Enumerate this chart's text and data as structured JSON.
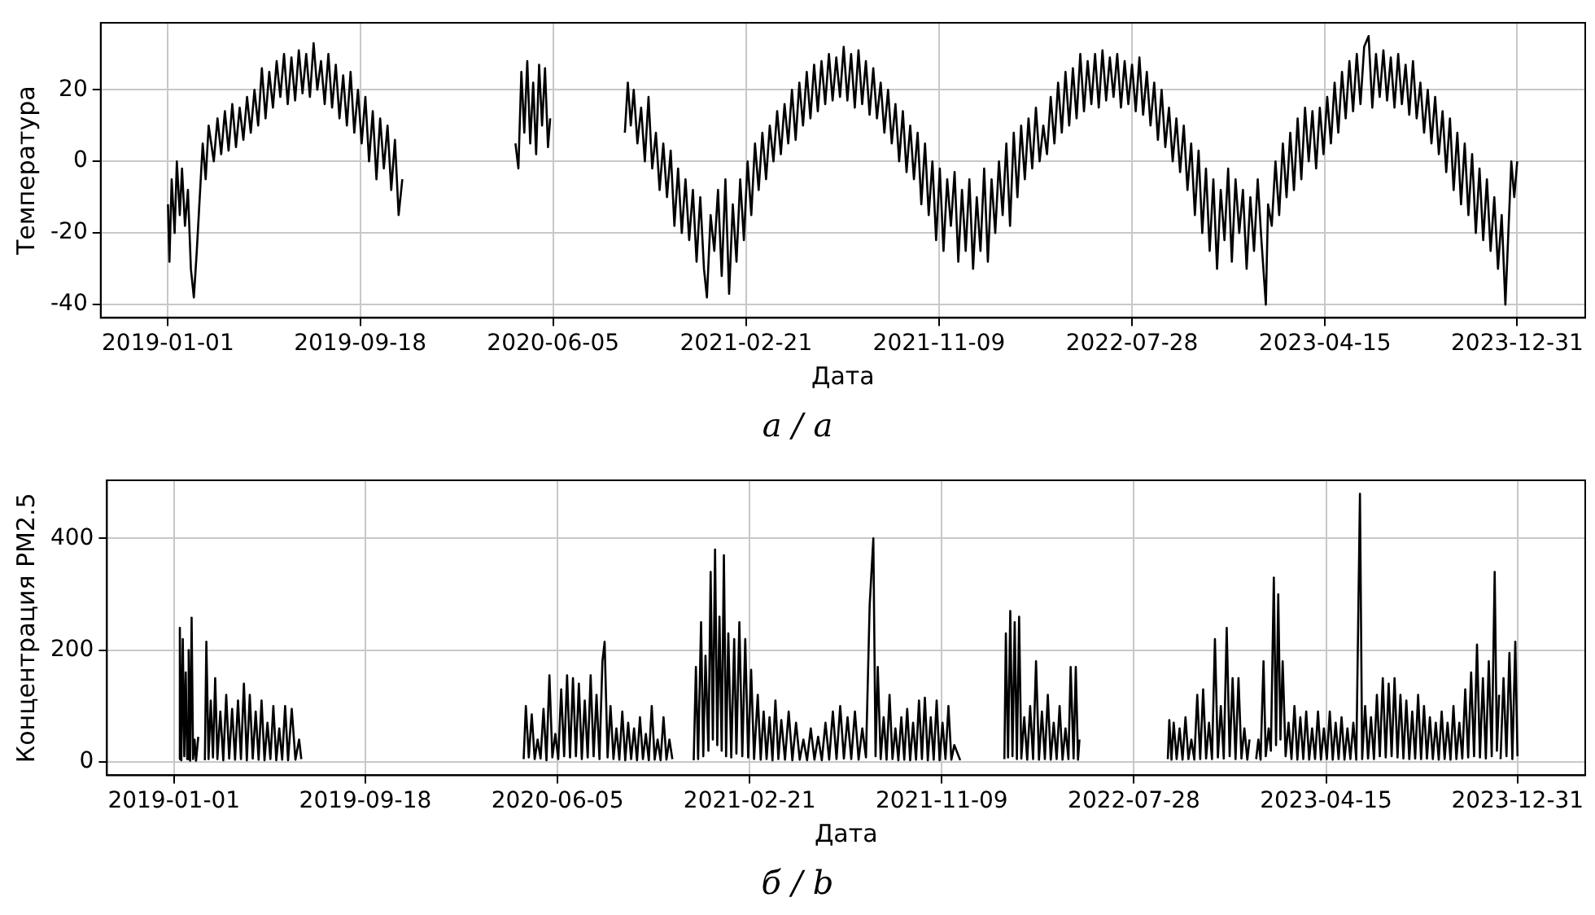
{
  "chart_data": [
    {
      "type": "line",
      "xlabel": "Дата",
      "ylabel": "Температура",
      "annotations": [
        "а / a"
      ],
      "xlim": [
        "2018-10-02",
        "2024-04-01"
      ],
      "xticks": [
        "2019-01-01",
        "2019-09-18",
        "2020-06-05",
        "2021-02-21",
        "2021-11-09",
        "2022-07-28",
        "2023-04-15",
        "2023-12-31"
      ],
      "ylim": [
        -43.7,
        38.7
      ],
      "yticks": [
        -40,
        -20,
        0,
        20
      ],
      "grid": true,
      "x": [
        "2019-01-01",
        "2019-01-03",
        "2019-01-06",
        "2019-01-10",
        "2019-01-13",
        "2019-01-17",
        "2019-01-20",
        "2019-01-24",
        "2019-01-28",
        "2019-02-01",
        "2019-02-05",
        "2019-02-09",
        "2019-02-13",
        "2019-02-17",
        "2019-02-21",
        "2019-02-25",
        "2019-03-04",
        "2019-03-09",
        "2019-03-14",
        "2019-03-19",
        "2019-03-24",
        "2019-03-29",
        "2019-04-03",
        "2019-04-08",
        "2019-04-13",
        "2019-04-18",
        "2019-04-23",
        "2019-04-28",
        "2019-05-03",
        "2019-05-08",
        "2019-05-13",
        "2019-05-18",
        "2019-05-23",
        "2019-05-28",
        "2019-06-02",
        "2019-06-07",
        "2019-06-12",
        "2019-06-17",
        "2019-06-22",
        "2019-06-27",
        "2019-07-02",
        "2019-07-07",
        "2019-07-12",
        "2019-07-17",
        "2019-07-22",
        "2019-07-27",
        "2019-08-01",
        "2019-08-06",
        "2019-08-11",
        "2019-08-16",
        "2019-08-21",
        "2019-08-26",
        "2019-08-31",
        "2019-09-05",
        "2019-09-10",
        "2019-09-15",
        "2019-09-20",
        "2019-09-25",
        "2019-09-30",
        "2019-10-05",
        "2019-10-10",
        "2019-10-15",
        "2019-10-20",
        "2019-10-25",
        "2019-10-30",
        "2019-11-04",
        "2019-11-09",
        "2019-11-14",
        "2020-01-15",
        "2020-04-15",
        "2020-04-19",
        "2020-04-23",
        "2020-04-27",
        "2020-05-01",
        "2020-05-05",
        "2020-05-09",
        "2020-05-13",
        "2020-05-17",
        "2020-05-21",
        "2020-05-25",
        "2020-05-29",
        "2020-06-01",
        "2020-07-20",
        "2020-09-10",
        "2020-09-14",
        "2020-09-18",
        "2020-09-22",
        "2020-09-27",
        "2020-10-02",
        "2020-10-07",
        "2020-10-12",
        "2020-10-17",
        "2020-10-22",
        "2020-10-27",
        "2020-11-01",
        "2020-11-06",
        "2020-11-11",
        "2020-11-16",
        "2020-11-21",
        "2020-11-26",
        "2020-12-01",
        "2020-12-06",
        "2020-12-11",
        "2020-12-16",
        "2020-12-21",
        "2020-12-26",
        "2020-12-30",
        "2021-01-04",
        "2021-01-09",
        "2021-01-14",
        "2021-01-19",
        "2021-01-24",
        "2021-01-29",
        "2021-02-03",
        "2021-02-08",
        "2021-02-13",
        "2021-02-18",
        "2021-02-23",
        "2021-02-28",
        "2021-03-05",
        "2021-03-10",
        "2021-03-15",
        "2021-03-20",
        "2021-03-25",
        "2021-03-30",
        "2021-04-04",
        "2021-04-09",
        "2021-04-14",
        "2021-04-19",
        "2021-04-24",
        "2021-04-29",
        "2021-05-04",
        "2021-05-09",
        "2021-05-14",
        "2021-05-19",
        "2021-05-24",
        "2021-05-29",
        "2021-06-03",
        "2021-06-08",
        "2021-06-13",
        "2021-06-18",
        "2021-06-23",
        "2021-06-28",
        "2021-07-03",
        "2021-07-08",
        "2021-07-13",
        "2021-07-18",
        "2021-07-23",
        "2021-07-28",
        "2021-08-02",
        "2021-08-07",
        "2021-08-12",
        "2021-08-17",
        "2021-08-22",
        "2021-08-27",
        "2021-09-01",
        "2021-09-06",
        "2021-09-11",
        "2021-09-16",
        "2021-09-21",
        "2021-09-26",
        "2021-10-01",
        "2021-10-06",
        "2021-10-11",
        "2021-10-16",
        "2021-10-21",
        "2021-10-26",
        "2021-10-31",
        "2021-11-05",
        "2021-11-10",
        "2021-11-15",
        "2021-11-20",
        "2021-11-25",
        "2021-11-30",
        "2021-12-05",
        "2021-12-10",
        "2021-12-15",
        "2021-12-20",
        "2021-12-25",
        "2021-12-30",
        "2022-01-04",
        "2022-01-09",
        "2022-01-14",
        "2022-01-19",
        "2022-01-24",
        "2022-01-29",
        "2022-02-03",
        "2022-02-08",
        "2022-02-13",
        "2022-02-18",
        "2022-02-23",
        "2022-02-28",
        "2022-03-05",
        "2022-03-10",
        "2022-03-15",
        "2022-03-20",
        "2022-03-25",
        "2022-03-30",
        "2022-04-04",
        "2022-04-09",
        "2022-04-14",
        "2022-04-19",
        "2022-04-24",
        "2022-04-29",
        "2022-05-04",
        "2022-05-09",
        "2022-05-14",
        "2022-05-19",
        "2022-05-24",
        "2022-05-29",
        "2022-06-03",
        "2022-06-08",
        "2022-06-13",
        "2022-06-18",
        "2022-06-23",
        "2022-06-28",
        "2022-07-03",
        "2022-07-08",
        "2022-07-13",
        "2022-07-18",
        "2022-07-23",
        "2022-07-28",
        "2022-08-02",
        "2022-08-07",
        "2022-08-12",
        "2022-08-17",
        "2022-08-22",
        "2022-08-27",
        "2022-09-01",
        "2022-09-06",
        "2022-09-11",
        "2022-09-16",
        "2022-09-21",
        "2022-09-26",
        "2022-10-01",
        "2022-10-06",
        "2022-10-11",
        "2022-10-16",
        "2022-10-21",
        "2022-10-26",
        "2022-10-31",
        "2022-11-05",
        "2022-11-10",
        "2022-11-15",
        "2022-11-20",
        "2022-11-25",
        "2022-11-30",
        "2022-12-05",
        "2022-12-10",
        "2022-12-15",
        "2022-12-20",
        "2022-12-25",
        "2022-12-30",
        "2023-01-04",
        "2023-01-09",
        "2023-01-14",
        "2023-01-19",
        "2023-01-25",
        "2023-01-28",
        "2023-02-02",
        "2023-02-07",
        "2023-02-12",
        "2023-02-17",
        "2023-02-22",
        "2023-02-27",
        "2023-03-04",
        "2023-03-09",
        "2023-03-14",
        "2023-03-19",
        "2023-03-24",
        "2023-03-29",
        "2023-04-03",
        "2023-04-08",
        "2023-04-13",
        "2023-04-18",
        "2023-04-23",
        "2023-04-28",
        "2023-05-03",
        "2023-05-08",
        "2023-05-13",
        "2023-05-18",
        "2023-05-23",
        "2023-05-28",
        "2023-06-02",
        "2023-06-07",
        "2023-06-13",
        "2023-06-18",
        "2023-06-23",
        "2023-06-28",
        "2023-07-03",
        "2023-07-08",
        "2023-07-13",
        "2023-07-18",
        "2023-07-23",
        "2023-07-28",
        "2023-08-02",
        "2023-08-07",
        "2023-08-12",
        "2023-08-17",
        "2023-08-22",
        "2023-08-27",
        "2023-09-01",
        "2023-09-06",
        "2023-09-11",
        "2023-09-16",
        "2023-09-21",
        "2023-09-26",
        "2023-10-01",
        "2023-10-06",
        "2023-10-11",
        "2023-10-16",
        "2023-10-21",
        "2023-10-26",
        "2023-10-31",
        "2023-11-05",
        "2023-11-10",
        "2023-11-15",
        "2023-11-20",
        "2023-11-25",
        "2023-11-30",
        "2023-12-05",
        "2023-12-10",
        "2023-12-15",
        "2023-12-19",
        "2023-12-23",
        "2023-12-27",
        "2023-12-31"
      ],
      "series": [
        {
          "color": "#000000",
          "values": [
            -12,
            -28,
            -5,
            -20,
            0,
            -15,
            -2,
            -18,
            -8,
            -30,
            -38,
            -25,
            -10,
            5,
            -5,
            10,
            0,
            12,
            2,
            14,
            3,
            16,
            4,
            15,
            6,
            18,
            8,
            20,
            10,
            26,
            12,
            25,
            15,
            28,
            18,
            30,
            16,
            29,
            17,
            31,
            19,
            30,
            18,
            33,
            20,
            28,
            16,
            30,
            15,
            27,
            12,
            24,
            10,
            25,
            8,
            20,
            5,
            18,
            0,
            14,
            -5,
            12,
            -2,
            10,
            -8,
            6,
            -15,
            -5,
            null,
            5,
            -2,
            25,
            8,
            28,
            5,
            22,
            2,
            27,
            10,
            26,
            4,
            12,
            null,
            8,
            22,
            10,
            20,
            5,
            15,
            0,
            18,
            -2,
            8,
            -8,
            5,
            -10,
            3,
            -18,
            -2,
            -20,
            -5,
            -22,
            -8,
            -28,
            -10,
            -30,
            -38,
            -15,
            -25,
            -8,
            -32,
            -5,
            -37,
            -12,
            -28,
            -5,
            -22,
            0,
            -15,
            5,
            -8,
            8,
            -5,
            10,
            0,
            14,
            2,
            16,
            5,
            20,
            6,
            22,
            10,
            25,
            12,
            27,
            14,
            28,
            16,
            30,
            17,
            29,
            18,
            32,
            17,
            30,
            15,
            31,
            16,
            28,
            13,
            26,
            12,
            22,
            8,
            20,
            5,
            16,
            0,
            14,
            -3,
            10,
            -5,
            8,
            -12,
            5,
            -15,
            0,
            -22,
            -2,
            -25,
            -5,
            -18,
            -3,
            -28,
            -8,
            -25,
            -5,
            -30,
            -10,
            -25,
            -2,
            -28,
            -5,
            -20,
            0,
            -15,
            5,
            -18,
            8,
            -10,
            10,
            -5,
            12,
            -2,
            15,
            0,
            10,
            2,
            18,
            5,
            22,
            8,
            25,
            10,
            26,
            12,
            30,
            14,
            28,
            16,
            30,
            15,
            31,
            17,
            29,
            18,
            30,
            15,
            28,
            16,
            27,
            14,
            29,
            13,
            25,
            10,
            22,
            6,
            20,
            4,
            15,
            0,
            12,
            -3,
            10,
            -8,
            5,
            -15,
            3,
            -20,
            -2,
            -25,
            -5,
            -30,
            -8,
            -22,
            -2,
            -28,
            -5,
            -20,
            -8,
            -30,
            -10,
            -25,
            -5,
            -22,
            -40,
            -12,
            -18,
            0,
            -15,
            5,
            -10,
            8,
            -8,
            12,
            -5,
            15,
            0,
            14,
            -2,
            15,
            2,
            18,
            5,
            22,
            8,
            25,
            12,
            28,
            14,
            30,
            16,
            32,
            35,
            15,
            30,
            18,
            31,
            17,
            29,
            15,
            30,
            16,
            27,
            13,
            28,
            12,
            22,
            8,
            20,
            5,
            18,
            2,
            14,
            -3,
            12,
            -8,
            8,
            -12,
            5,
            -15,
            2,
            -20,
            -2,
            -22,
            -5,
            -25,
            -10,
            -30,
            -15,
            -40,
            -20,
            0,
            -10,
            0
          ]
        }
      ]
    },
    {
      "type": "line",
      "xlabel": "Дата",
      "ylabel": "Концентрация PM2.5",
      "annotations": [
        "б / b"
      ],
      "xlim": [
        "2018-10-02",
        "2024-04-01"
      ],
      "xticks": [
        "2019-01-01",
        "2019-09-18",
        "2020-06-05",
        "2021-02-21",
        "2021-11-09",
        "2022-07-28",
        "2023-04-15",
        "2023-12-31"
      ],
      "ylim": [
        -24,
        504
      ],
      "yticks": [
        0,
        200,
        400
      ],
      "grid": true,
      "x": [
        "2019-01-08",
        "2019-01-09",
        "2019-01-11",
        "2019-01-13",
        "2019-01-15",
        "2019-01-17",
        "2019-01-19",
        "2019-01-21",
        "2019-01-23",
        "2019-01-25",
        "2019-01-27",
        "2019-01-29",
        "2019-01-31",
        "2019-02-03",
        "2019-02-08",
        "2019-02-12",
        "2019-02-14",
        "2019-02-17",
        "2019-02-20",
        "2019-02-23",
        "2019-02-26",
        "2019-03-01",
        "2019-03-05",
        "2019-03-09",
        "2019-03-13",
        "2019-03-17",
        "2019-03-21",
        "2019-03-25",
        "2019-03-29",
        "2019-04-02",
        "2019-04-06",
        "2019-04-10",
        "2019-04-14",
        "2019-04-18",
        "2019-04-22",
        "2019-04-26",
        "2019-04-30",
        "2019-05-04",
        "2019-05-08",
        "2019-05-12",
        "2019-05-16",
        "2019-05-20",
        "2019-05-24",
        "2019-05-28",
        "2019-06-01",
        "2019-06-05",
        "2019-06-10",
        "2019-06-15",
        "2019-06-20",
        "2019-06-23",
        "2019-12-01",
        "2020-04-20",
        "2020-04-23",
        "2020-04-27",
        "2020-05-01",
        "2020-05-05",
        "2020-05-09",
        "2020-05-13",
        "2020-05-17",
        "2020-05-21",
        "2020-05-25",
        "2020-05-29",
        "2020-06-02",
        "2020-06-06",
        "2020-06-10",
        "2020-06-14",
        "2020-06-18",
        "2020-06-22",
        "2020-06-26",
        "2020-06-30",
        "2020-07-04",
        "2020-07-08",
        "2020-07-12",
        "2020-07-16",
        "2020-07-20",
        "2020-07-24",
        "2020-07-28",
        "2020-08-01",
        "2020-08-05",
        "2020-08-08",
        "2020-08-12",
        "2020-08-16",
        "2020-08-20",
        "2020-08-24",
        "2020-08-28",
        "2020-09-01",
        "2020-09-05",
        "2020-09-09",
        "2020-09-13",
        "2020-09-17",
        "2020-09-21",
        "2020-09-25",
        "2020-09-29",
        "2020-10-03",
        "2020-10-07",
        "2020-10-11",
        "2020-10-15",
        "2020-10-19",
        "2020-10-23",
        "2020-10-27",
        "2020-10-31",
        "2020-11-04",
        "2020-11-08",
        "2020-11-22",
        "2020-12-07",
        "2020-12-10",
        "2020-12-13",
        "2020-12-17",
        "2020-12-20",
        "2020-12-23",
        "2020-12-27",
        "2020-12-30",
        "2021-01-02",
        "2021-01-05",
        "2021-01-08",
        "2021-01-11",
        "2021-01-14",
        "2021-01-17",
        "2021-01-20",
        "2021-01-23",
        "2021-01-27",
        "2021-01-31",
        "2021-02-03",
        "2021-02-07",
        "2021-02-11",
        "2021-02-15",
        "2021-02-19",
        "2021-02-23",
        "2021-02-27",
        "2021-03-04",
        "2021-03-08",
        "2021-03-12",
        "2021-03-16",
        "2021-03-20",
        "2021-03-24",
        "2021-03-28",
        "2021-04-01",
        "2021-04-05",
        "2021-04-10",
        "2021-04-15",
        "2021-04-20",
        "2021-04-25",
        "2021-04-30",
        "2021-05-05",
        "2021-05-10",
        "2021-05-15",
        "2021-05-20",
        "2021-05-25",
        "2021-05-30",
        "2021-06-04",
        "2021-06-09",
        "2021-06-14",
        "2021-06-19",
        "2021-06-24",
        "2021-06-29",
        "2021-07-04",
        "2021-07-09",
        "2021-07-14",
        "2021-07-19",
        "2021-07-24",
        "2021-07-29",
        "2021-08-03",
        "2021-08-08",
        "2021-08-11",
        "2021-08-14",
        "2021-08-18",
        "2021-08-22",
        "2021-08-26",
        "2021-08-30",
        "2021-09-03",
        "2021-09-07",
        "2021-09-11",
        "2021-09-15",
        "2021-09-19",
        "2021-09-23",
        "2021-09-27",
        "2021-10-01",
        "2021-10-05",
        "2021-10-09",
        "2021-10-13",
        "2021-10-17",
        "2021-10-21",
        "2021-10-25",
        "2021-10-29",
        "2021-11-02",
        "2021-11-06",
        "2021-11-10",
        "2021-11-14",
        "2021-11-18",
        "2021-11-22",
        "2021-11-26",
        "2021-12-04",
        "2022-01-05",
        "2022-02-02",
        "2022-02-04",
        "2022-02-07",
        "2022-02-10",
        "2022-02-13",
        "2022-02-16",
        "2022-02-19",
        "2022-02-22",
        "2022-02-25",
        "2022-03-01",
        "2022-03-05",
        "2022-03-09",
        "2022-03-13",
        "2022-03-17",
        "2022-03-21",
        "2022-03-25",
        "2022-03-29",
        "2022-04-02",
        "2022-04-06",
        "2022-04-10",
        "2022-04-14",
        "2022-04-18",
        "2022-04-22",
        "2022-04-26",
        "2022-04-30",
        "2022-05-03",
        "2022-05-07",
        "2022-05-10",
        "2022-05-13",
        "2022-05-15",
        "2022-07-15",
        "2022-09-12",
        "2022-09-14",
        "2022-09-17",
        "2022-09-20",
        "2022-09-24",
        "2022-09-28",
        "2022-10-02",
        "2022-10-06",
        "2022-10-10",
        "2022-10-14",
        "2022-10-18",
        "2022-10-22",
        "2022-10-26",
        "2022-10-30",
        "2022-11-03",
        "2022-11-07",
        "2022-11-11",
        "2022-11-15",
        "2022-11-19",
        "2022-11-23",
        "2022-11-27",
        "2022-12-01",
        "2022-12-05",
        "2022-12-09",
        "2022-12-13",
        "2022-12-17",
        "2022-12-21",
        "2022-12-25",
        "2022-12-29",
        "2023-01-01",
        "2023-01-05",
        "2023-01-10",
        "2023-01-13",
        "2023-01-16",
        "2023-01-20",
        "2023-01-23",
        "2023-01-27",
        "2023-01-30",
        "2023-02-03",
        "2023-02-06",
        "2023-02-09",
        "2023-02-12",
        "2023-02-15",
        "2023-02-19",
        "2023-02-23",
        "2023-02-27",
        "2023-03-03",
        "2023-03-07",
        "2023-03-11",
        "2023-03-15",
        "2023-03-19",
        "2023-03-23",
        "2023-03-27",
        "2023-03-31",
        "2023-04-04",
        "2023-04-08",
        "2023-04-12",
        "2023-04-16",
        "2023-04-20",
        "2023-04-24",
        "2023-04-28",
        "2023-05-02",
        "2023-05-06",
        "2023-05-10",
        "2023-05-14",
        "2023-05-18",
        "2023-05-22",
        "2023-05-26",
        "2023-05-31",
        "2023-06-03",
        "2023-06-07",
        "2023-06-11",
        "2023-06-15",
        "2023-06-19",
        "2023-06-23",
        "2023-06-27",
        "2023-07-01",
        "2023-07-05",
        "2023-07-09",
        "2023-07-13",
        "2023-07-17",
        "2023-07-21",
        "2023-07-25",
        "2023-07-29",
        "2023-08-02",
        "2023-08-06",
        "2023-08-10",
        "2023-08-14",
        "2023-08-18",
        "2023-08-22",
        "2023-08-26",
        "2023-08-30",
        "2023-09-03",
        "2023-09-07",
        "2023-09-11",
        "2023-09-15",
        "2023-09-19",
        "2023-09-23",
        "2023-09-27",
        "2023-10-01",
        "2023-10-05",
        "2023-10-09",
        "2023-10-13",
        "2023-10-17",
        "2023-10-21",
        "2023-10-25",
        "2023-10-29",
        "2023-11-02",
        "2023-11-06",
        "2023-11-10",
        "2023-11-14",
        "2023-11-18",
        "2023-11-22",
        "2023-11-26",
        "2023-11-30",
        "2023-12-03",
        "2023-12-06",
        "2023-12-07",
        "2023-12-08",
        "2023-12-12",
        "2023-12-16",
        "2023-12-20",
        "2023-12-24",
        "2023-12-28",
        "2023-12-31"
      ],
      "series": [
        {
          "color": "#000000",
          "values": [
            5,
            240,
            3,
            220,
            10,
            160,
            5,
            200,
            2,
            258,
            5,
            40,
            2,
            45,
            null,
            3,
            215,
            5,
            110,
            8,
            150,
            5,
            90,
            3,
            120,
            6,
            95,
            4,
            110,
            5,
            140,
            3,
            120,
            6,
            90,
            4,
            110,
            3,
            70,
            5,
            100,
            3,
            60,
            4,
            100,
            3,
            95,
            4,
            40,
            5,
            null,
            5,
            100,
            8,
            85,
            5,
            40,
            6,
            95,
            3,
            155,
            8,
            50,
            5,
            130,
            10,
            155,
            8,
            150,
            10,
            140,
            5,
            110,
            8,
            155,
            10,
            120,
            5,
            180,
            215,
            8,
            100,
            5,
            60,
            4,
            90,
            3,
            70,
            5,
            60,
            3,
            80,
            5,
            50,
            3,
            100,
            4,
            40,
            3,
            80,
            4,
            40,
            5,
            null,
            3,
            170,
            5,
            250,
            10,
            190,
            20,
            340,
            40,
            380,
            30,
            260,
            20,
            370,
            10,
            230,
            8,
            220,
            15,
            250,
            10,
            220,
            8,
            165,
            5,
            120,
            4,
            90,
            5,
            80,
            3,
            110,
            5,
            75,
            4,
            90,
            3,
            70,
            4,
            40,
            3,
            60,
            4,
            45,
            3,
            70,
            4,
            90,
            5,
            100,
            6,
            80,
            5,
            90,
            4,
            60,
            8,
            280,
            400,
            10,
            170,
            5,
            80,
            4,
            120,
            5,
            60,
            3,
            80,
            4,
            95,
            3,
            70,
            4,
            110,
            5,
            115,
            3,
            80,
            4,
            110,
            3,
            70,
            5,
            100,
            4,
            30,
            3,
            null,
            5,
            230,
            8,
            270,
            10,
            250,
            5,
            260,
            6,
            80,
            4,
            100,
            5,
            180,
            4,
            90,
            5,
            120,
            4,
            70,
            5,
            100,
            4,
            60,
            5,
            170,
            6,
            170,
            4,
            40,
            null,
            5,
            75,
            4,
            70,
            5,
            60,
            4,
            80,
            5,
            40,
            4,
            120,
            5,
            130,
            6,
            70,
            5,
            220,
            8,
            100,
            6,
            240,
            10,
            150,
            5,
            150,
            6,
            60,
            4,
            40,
            null,
            5,
            40,
            4,
            180,
            10,
            60,
            20,
            330,
            30,
            300,
            40,
            180,
            10,
            70,
            5,
            100,
            4,
            80,
            5,
            90,
            4,
            60,
            5,
            90,
            4,
            60,
            5,
            90,
            4,
            70,
            5,
            80,
            4,
            60,
            5,
            70,
            4,
            480,
            5,
            100,
            6,
            80,
            5,
            120,
            10,
            150,
            8,
            140,
            10,
            150,
            8,
            120,
            6,
            110,
            5,
            90,
            6,
            120,
            5,
            100,
            6,
            80,
            5,
            70,
            4,
            90,
            5,
            70,
            4,
            100,
            5,
            70,
            6,
            130,
            8,
            160,
            10,
            210,
            8,
            150,
            6,
            180,
            10,
            340,
            20,
            120,
            null,
            5,
            150,
            10,
            195,
            5,
            215,
            10
          ]
        }
      ]
    }
  ]
}
